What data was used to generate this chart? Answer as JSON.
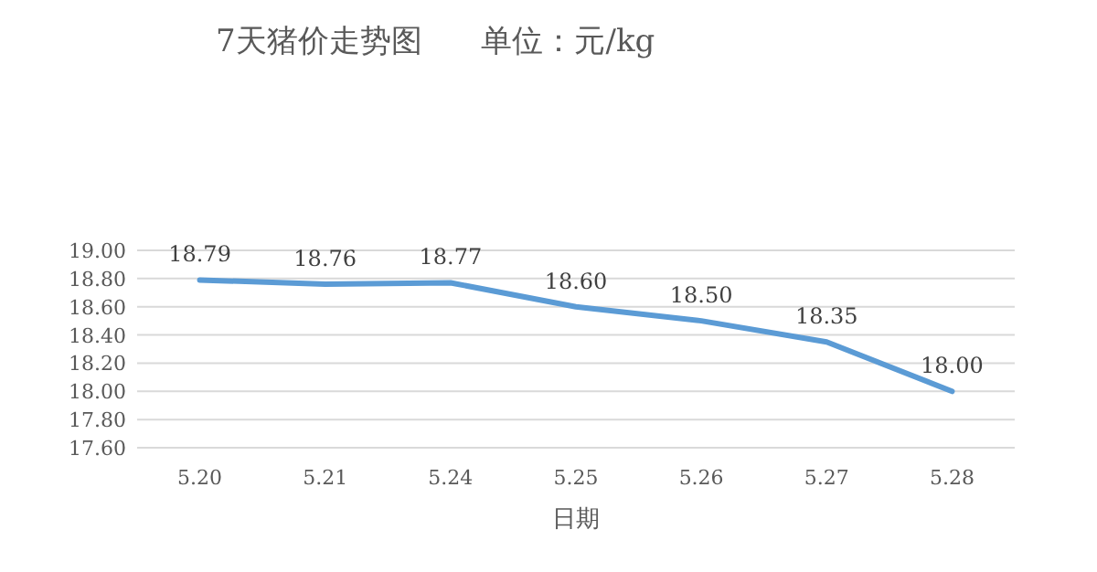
{
  "chart_data": {
    "type": "line",
    "title": "7天猪价走势图      单位：元/kg",
    "xlabel": "日期",
    "categories": [
      "5.20",
      "5.21",
      "5.24",
      "5.25",
      "5.26",
      "5.27",
      "5.28"
    ],
    "series": [
      {
        "color": "#5b9bd5",
        "values": [
          18.79,
          18.76,
          18.77,
          18.6,
          18.5,
          18.35,
          18.0
        ],
        "value_labels": [
          "18.79",
          "18.76",
          "18.77",
          "18.60",
          "18.50",
          "18.35",
          "18.00"
        ]
      }
    ],
    "ylim": [
      17.6,
      19.0
    ],
    "yticks": [
      {
        "value": 17.6,
        "label": "17.60"
      },
      {
        "value": 17.8,
        "label": "17.80"
      },
      {
        "value": 18.0,
        "label": "18.00"
      },
      {
        "value": 18.2,
        "label": "18.20"
      },
      {
        "value": 18.4,
        "label": "18.40"
      },
      {
        "value": 18.6,
        "label": "18.60"
      },
      {
        "value": 18.8,
        "label": "18.80"
      },
      {
        "value": 19.0,
        "label": "19.00"
      }
    ],
    "grid": "y",
    "marker": "none",
    "line_style": "solid"
  }
}
